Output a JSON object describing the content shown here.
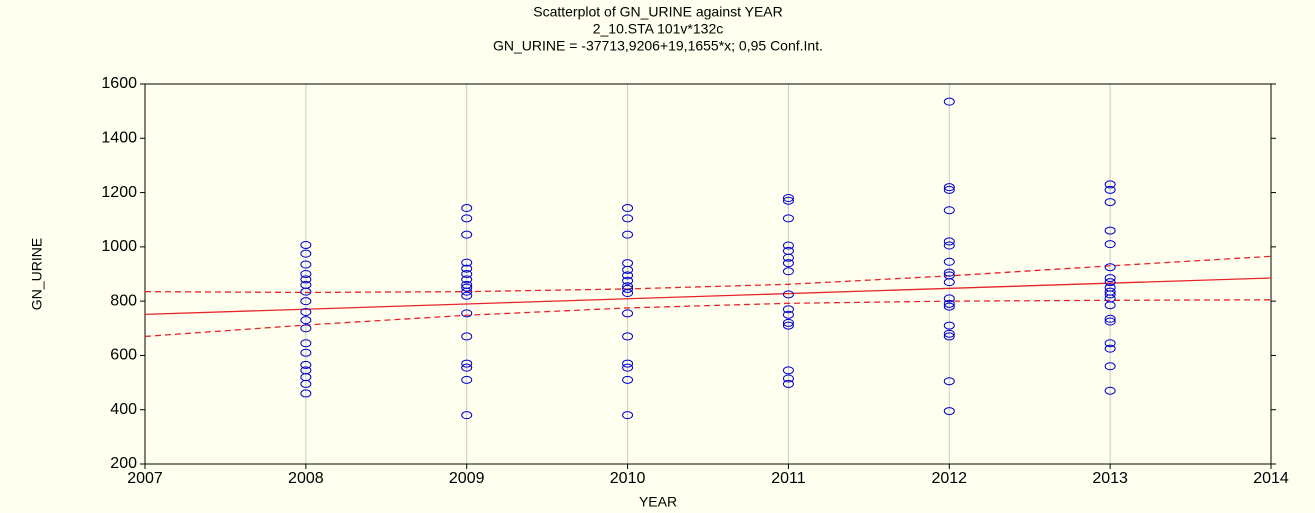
{
  "chart_data": {
    "type": "scatter",
    "title": "Scatterplot of GN_URINE against YEAR",
    "subtitle": "2_10.STA 101v*132c",
    "equation": "GN_URINE = -37713,9206+19,1655*x; 0,95 Conf.Int.",
    "x_label": "YEAR",
    "y_label": "GN_URINE",
    "xlim": [
      2007,
      2014
    ],
    "ylim": [
      200,
      1600
    ],
    "xticks": [
      2007,
      2008,
      2009,
      2010,
      2011,
      2012,
      2013,
      2014
    ],
    "yticks": [
      200,
      400,
      600,
      800,
      1000,
      1200,
      1400,
      1600
    ],
    "grid": true,
    "point_color": "#0000cc",
    "line_color": "#e8242b",
    "series": [
      {
        "x": [
          2008,
          2008,
          2008,
          2008,
          2008,
          2008,
          2008,
          2008,
          2008,
          2008,
          2008,
          2008,
          2008,
          2008,
          2008,
          2008,
          2008,
          2008
        ],
        "values": [
          1007,
          975,
          935,
          900,
          880,
          860,
          835,
          800,
          760,
          730,
          700,
          645,
          610,
          565,
          545,
          520,
          495,
          460
        ]
      },
      {
        "x": [
          2009,
          2009,
          2009,
          2009,
          2009,
          2009,
          2009,
          2009,
          2009,
          2009,
          2009,
          2009,
          2009,
          2009,
          2009,
          2009,
          2009
        ],
        "values": [
          1143,
          1105,
          1045,
          942,
          920,
          900,
          880,
          860,
          850,
          835,
          820,
          755,
          670,
          570,
          555,
          510,
          380
        ]
      },
      {
        "x": [
          2010,
          2010,
          2010,
          2010,
          2010,
          2010,
          2010,
          2010,
          2010,
          2010,
          2010,
          2010,
          2010,
          2010,
          2010,
          2010
        ],
        "values": [
          1143,
          1105,
          1045,
          940,
          915,
          895,
          875,
          855,
          845,
          830,
          755,
          670,
          570,
          555,
          510,
          380
        ]
      },
      {
        "x": [
          2011,
          2011,
          2011,
          2011,
          2011,
          2011,
          2011,
          2011,
          2011,
          2011,
          2011,
          2011,
          2011,
          2011,
          2011,
          2011
        ],
        "values": [
          1180,
          1170,
          1105,
          1005,
          985,
          960,
          940,
          910,
          825,
          770,
          750,
          720,
          710,
          545,
          515,
          495
        ]
      },
      {
        "x": [
          2012,
          2012,
          2012,
          2012,
          2012,
          2012,
          2012,
          2012,
          2012,
          2012,
          2012,
          2012,
          2012,
          2012,
          2012,
          2012,
          2012,
          2012
        ],
        "values": [
          1535,
          1220,
          1210,
          1135,
          1020,
          1005,
          945,
          905,
          895,
          870,
          810,
          790,
          780,
          710,
          680,
          670,
          505,
          395
        ]
      },
      {
        "x": [
          2013,
          2013,
          2013,
          2013,
          2013,
          2013,
          2013,
          2013,
          2013,
          2013,
          2013,
          2013,
          2013,
          2013,
          2013,
          2013,
          2013,
          2013,
          2013
        ],
        "values": [
          1230,
          1210,
          1165,
          1060,
          1010,
          925,
          885,
          870,
          850,
          835,
          825,
          810,
          785,
          735,
          725,
          645,
          625,
          560,
          470
        ]
      }
    ],
    "regression": {
      "intercept": -37713.9206,
      "slope": 19.1655
    },
    "ci_lower": {
      "x": [
        2007,
        2008,
        2009,
        2010,
        2011,
        2012,
        2013,
        2014
      ],
      "values": [
        670,
        712,
        748,
        775,
        792,
        800,
        803,
        805
      ]
    },
    "ci_upper": {
      "x": [
        2007,
        2008,
        2009,
        2010,
        2011,
        2012,
        2013,
        2014
      ],
      "values": [
        835,
        832,
        835,
        845,
        862,
        893,
        930,
        965
      ]
    }
  }
}
